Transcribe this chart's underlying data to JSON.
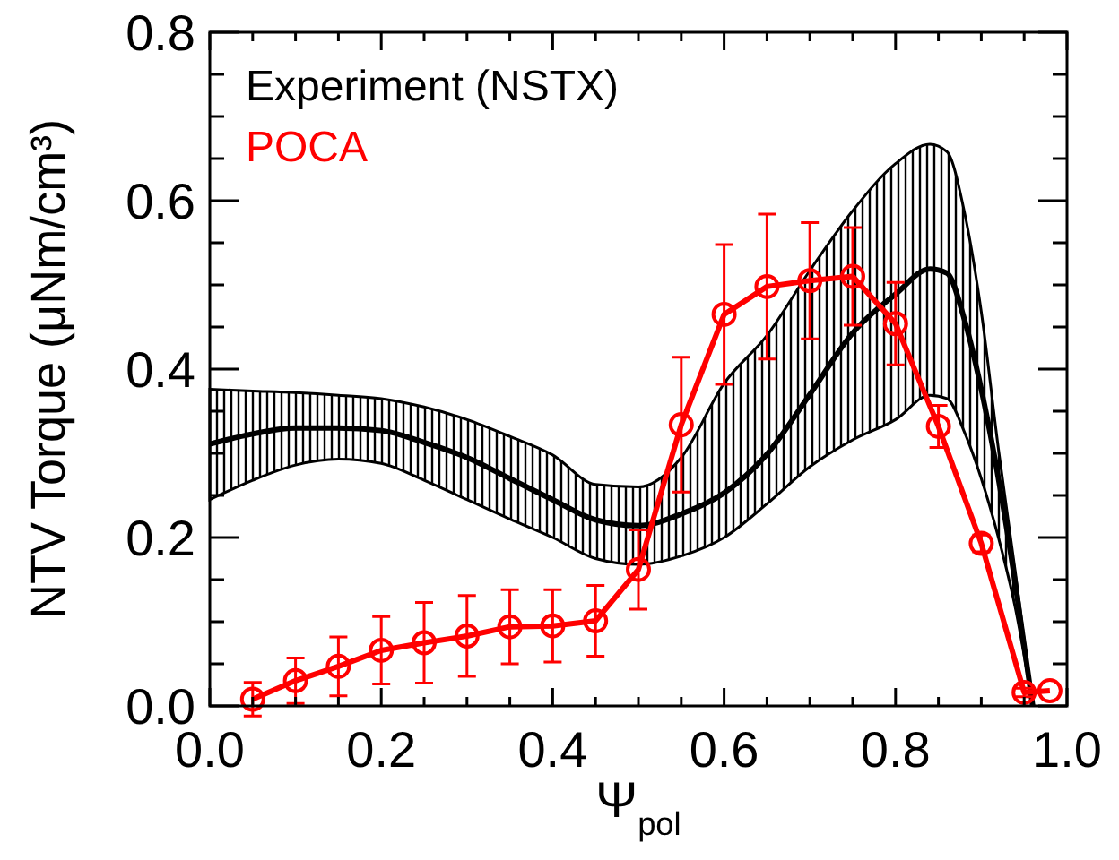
{
  "chart_data": {
    "type": "line",
    "xlabel": "Ψ$_{pol}$",
    "ylabel": "NTV Torque (μNm/cm³)",
    "xlim": [
      0,
      1
    ],
    "ylim": [
      0,
      0.8
    ],
    "xticks": [
      {
        "value": 0,
        "label": "0.0"
      },
      {
        "value": 0.05,
        "label": null
      },
      {
        "value": 0.1,
        "label": null
      },
      {
        "value": 0.15,
        "label": null
      },
      {
        "value": 0.2,
        "label": "0.2"
      },
      {
        "value": 0.25,
        "label": null
      },
      {
        "value": 0.3,
        "label": null
      },
      {
        "value": 0.35,
        "label": null
      },
      {
        "value": 0.4,
        "label": "0.4"
      },
      {
        "value": 0.45,
        "label": null
      },
      {
        "value": 0.5,
        "label": null
      },
      {
        "value": 0.55,
        "label": null
      },
      {
        "value": 0.6,
        "label": "0.6"
      },
      {
        "value": 0.65,
        "label": null
      },
      {
        "value": 0.7,
        "label": null
      },
      {
        "value": 0.75,
        "label": null
      },
      {
        "value": 0.8,
        "label": "0.8"
      },
      {
        "value": 0.85,
        "label": null
      },
      {
        "value": 0.9,
        "label": null
      },
      {
        "value": 0.95,
        "label": null
      },
      {
        "value": 1,
        "label": "1.0"
      }
    ],
    "yticks": [
      {
        "value": 0,
        "label": "0.0"
      },
      {
        "value": 0.05,
        "label": null
      },
      {
        "value": 0.1,
        "label": null
      },
      {
        "value": 0.15,
        "label": null
      },
      {
        "value": 0.2,
        "label": "0.2"
      },
      {
        "value": 0.25,
        "label": null
      },
      {
        "value": 0.3,
        "label": null
      },
      {
        "value": 0.35,
        "label": null
      },
      {
        "value": 0.4,
        "label": "0.4"
      },
      {
        "value": 0.45,
        "label": null
      },
      {
        "value": 0.5,
        "label": null
      },
      {
        "value": 0.55,
        "label": null
      },
      {
        "value": 0.6,
        "label": "0.6"
      },
      {
        "value": 0.65,
        "label": null
      },
      {
        "value": 0.7,
        "label": null
      },
      {
        "value": 0.75,
        "label": null
      },
      {
        "value": 0.8,
        "label": "0.8"
      }
    ],
    "grid": false,
    "legend": "top left",
    "line_style": "solid",
    "series": [
      {
        "name": "Experiment (NSTX)",
        "color": "#000000",
        "marker": "none",
        "x": [
          0,
          0.05,
          0.1,
          0.15,
          0.2,
          0.25,
          0.3,
          0.35,
          0.4,
          0.45,
          0.5,
          0.55,
          0.6,
          0.65,
          0.7,
          0.75,
          0.8,
          0.84,
          0.86,
          0.88,
          0.9,
          0.92,
          0.94,
          0.96
        ],
        "values": [
          0.311,
          0.323,
          0.33,
          0.33,
          0.327,
          0.313,
          0.295,
          0.27,
          0.245,
          0.221,
          0.214,
          0.228,
          0.253,
          0.299,
          0.37,
          0.443,
          0.489,
          0.519,
          0.514,
          0.46,
          0.376,
          0.27,
          0.143,
          0
        ],
        "upper": [
          0.376,
          0.374,
          0.372,
          0.369,
          0.365,
          0.355,
          0.34,
          0.32,
          0.298,
          0.263,
          0.26,
          0.295,
          0.383,
          0.44,
          0.517,
          0.588,
          0.644,
          0.667,
          0.658,
          0.588,
          0.468,
          0.305,
          0.157,
          0
        ],
        "lower": [
          0.245,
          0.268,
          0.286,
          0.293,
          0.288,
          0.268,
          0.245,
          0.222,
          0.2,
          0.175,
          0.168,
          0.178,
          0.2,
          0.24,
          0.284,
          0.316,
          0.34,
          0.369,
          0.365,
          0.326,
          0.27,
          0.2,
          0.115,
          0
        ]
      },
      {
        "name": "POCA",
        "color": "#ff0000",
        "marker": "circle",
        "x": [
          0.05,
          0.1,
          0.15,
          0.2,
          0.25,
          0.3,
          0.35,
          0.4,
          0.45,
          0.5,
          0.55,
          0.6,
          0.65,
          0.7,
          0.75,
          0.8,
          0.85,
          0.9,
          0.95,
          0.98
        ],
        "values": [
          0.008,
          0.03,
          0.047,
          0.066,
          0.075,
          0.083,
          0.094,
          0.095,
          0.101,
          0.162,
          0.334,
          0.465,
          0.498,
          0.505,
          0.51,
          0.454,
          0.332,
          0.193,
          0.016,
          0.018
        ],
        "errors": [
          0.02,
          0.027,
          0.035,
          0.04,
          0.048,
          0.048,
          0.044,
          0.043,
          0.042,
          0.047,
          0.08,
          0.083,
          0.086,
          0.069,
          0.058,
          0.049,
          0.025,
          0.01,
          0.005,
          null
        ]
      }
    ]
  }
}
